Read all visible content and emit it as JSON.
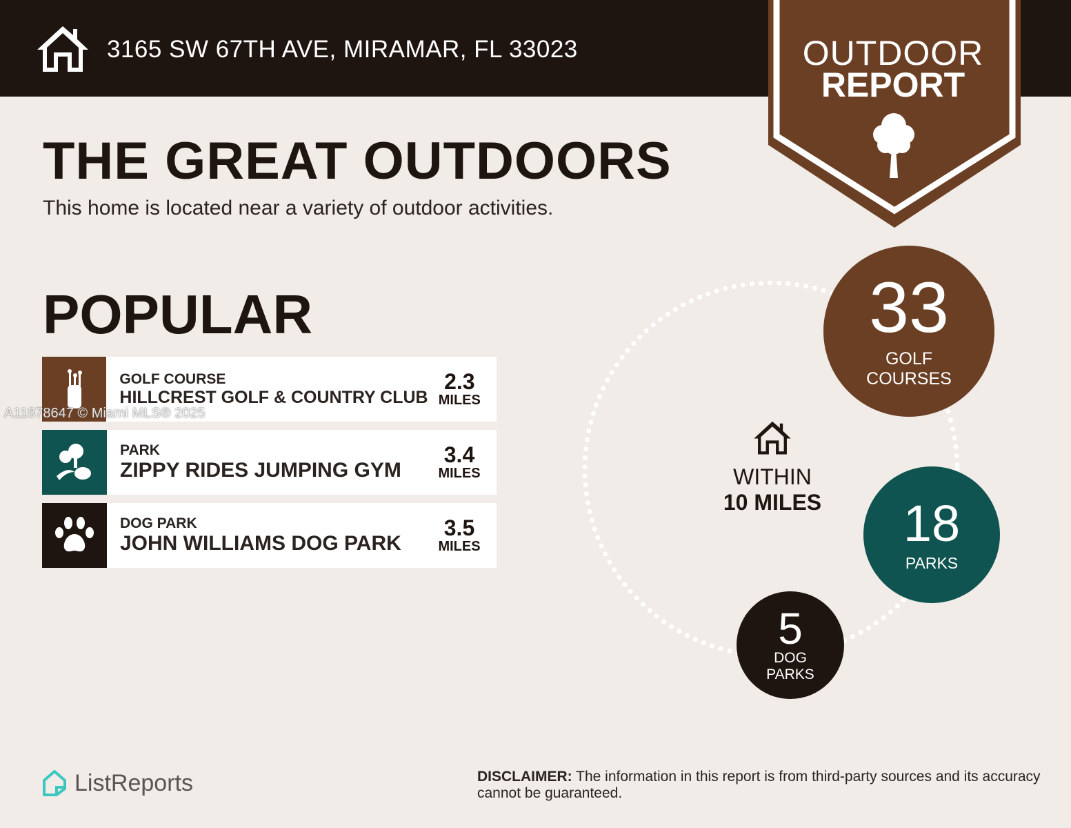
{
  "header": {
    "address": "3165 SW 67TH AVE, MIRAMAR, FL 33023",
    "icon": "home-icon"
  },
  "badge": {
    "line1": "OUTDOOR",
    "line2": "REPORT",
    "icon": "tree-icon"
  },
  "title": "THE GREAT OUTDOORS",
  "subtitle": "This home is located near a variety of outdoor activities.",
  "popular": {
    "heading": "POPULAR",
    "items": [
      {
        "category": "GOLF COURSE",
        "name": "HILLCREST GOLF & COUNTRY CLUB",
        "distance": "2.3",
        "unit": "MILES",
        "icon": "golf-bag-icon",
        "color": "#6b3f24"
      },
      {
        "category": "PARK",
        "name": "ZIPPY RIDES JUMPING GYM",
        "distance": "3.4",
        "unit": "MILES",
        "icon": "park-trees-icon",
        "color": "#0f5450"
      },
      {
        "category": "DOG PARK",
        "name": "JOHN WILLIAMS DOG PARK",
        "distance": "3.5",
        "unit": "MILES",
        "icon": "paw-icon",
        "color": "#1e1410"
      }
    ]
  },
  "watermark": "A11878647 © Miami MLS® 2025",
  "summary": {
    "within_line1": "WITHIN",
    "within_line2": "10 MILES",
    "golf": {
      "count": "33",
      "label1": "GOLF",
      "label2": "COURSES",
      "color": "#6b3f24"
    },
    "parks": {
      "count": "18",
      "label": "PARKS",
      "color": "#0f5450"
    },
    "dogparks": {
      "count": "5",
      "label1": "DOG",
      "label2": "PARKS",
      "color": "#1e1410"
    }
  },
  "footer": {
    "logo": "ListReports",
    "disclaimer_bold": "DISCLAIMER:",
    "disclaimer": " The information in this report is from third-party sources and its accuracy cannot be guaranteed."
  }
}
